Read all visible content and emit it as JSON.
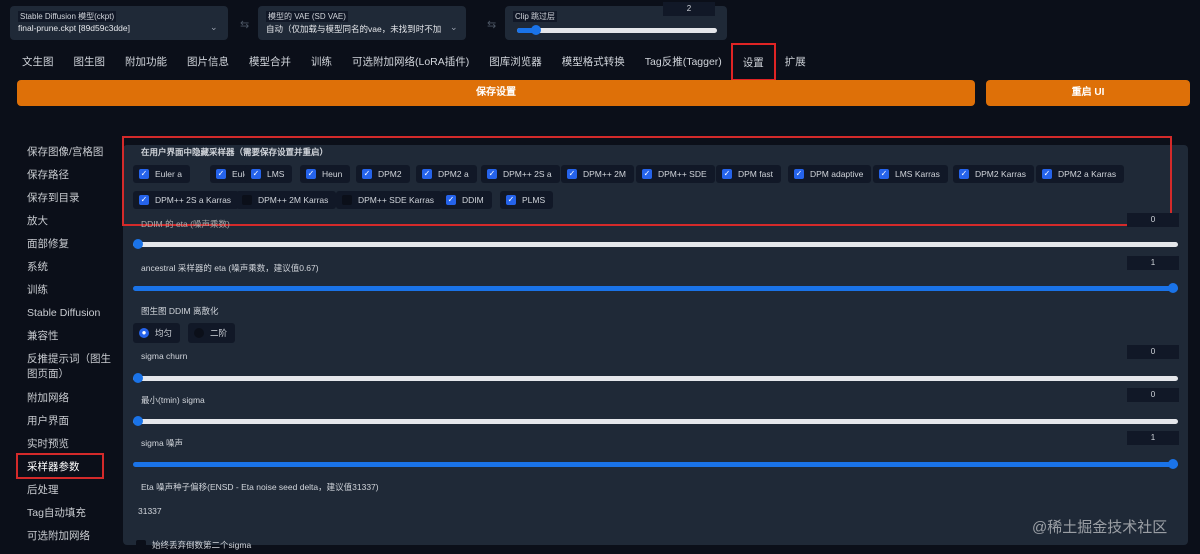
{
  "top": {
    "model_label": "Stable Diffusion 模型(ckpt)",
    "model_value": "final-prune.ckpt [89d59c3dde]",
    "vae_label": "模型的 VAE (SD VAE)",
    "vae_value": "自动（仅加载与模型同名的vae，未找到时不加",
    "clip_label": "Clip 跳过层",
    "clip_value": "2",
    "clip_fraction": 0.1
  },
  "tabs": [
    "文生图",
    "图生图",
    "附加功能",
    "图片信息",
    "模型合并",
    "训练",
    "可选附加网络(LoRA插件)",
    "图库浏览器",
    "模型格式转换",
    "Tag反推(Tagger)",
    "设置",
    "扩展"
  ],
  "active_tab": "设置",
  "buttons": {
    "save": "保存设置",
    "restart": "重启 UI"
  },
  "sidebar": [
    "保存图像/宫格图",
    "保存路径",
    "保存到目录",
    "放大",
    "面部修复",
    "系统",
    "训练",
    "Stable Diffusion",
    "兼容性",
    "反推提示词（图生图页面）",
    "附加网络",
    "用户界面",
    "实时预览",
    "采样器参数",
    "后处理",
    "Tag自动填充",
    "可选附加网络"
  ],
  "sidebar_active": "采样器参数",
  "samplers": {
    "title": "在用户界面中隐藏采样器（需要保存设置并重启）",
    "items": [
      {
        "label": "Euler a",
        "checked": true
      },
      {
        "label": "Euler",
        "checked": true
      },
      {
        "label": "LMS",
        "checked": true
      },
      {
        "label": "Heun",
        "checked": true
      },
      {
        "label": "DPM2",
        "checked": true
      },
      {
        "label": "DPM2 a",
        "checked": true
      },
      {
        "label": "DPM++ 2S a",
        "checked": true
      },
      {
        "label": "DPM++ 2M",
        "checked": true
      },
      {
        "label": "DPM++ SDE",
        "checked": true
      },
      {
        "label": "DPM fast",
        "checked": true
      },
      {
        "label": "DPM adaptive",
        "checked": true
      },
      {
        "label": "LMS Karras",
        "checked": true
      },
      {
        "label": "DPM2 Karras",
        "checked": true
      },
      {
        "label": "DPM2 a Karras",
        "checked": true
      },
      {
        "label": "DPM++ 2S a Karras",
        "checked": true
      },
      {
        "label": "DPM++ 2M Karras",
        "checked": false
      },
      {
        "label": "DPM++ SDE Karras",
        "checked": false
      },
      {
        "label": "DDIM",
        "checked": true
      },
      {
        "label": "PLMS",
        "checked": true
      }
    ]
  },
  "settings": {
    "ddim_eta": {
      "label": "DDIM 的 eta (噪声乘数)",
      "value": "0"
    },
    "ancestral_eta": {
      "label": "ancestral 采样器的 eta (噪声乘数，建议值0.67)",
      "value": "1"
    },
    "ddim_discretize": {
      "label": "图生图 DDIM 离散化",
      "options": [
        "均匀",
        "二阶"
      ],
      "selected": "均匀"
    },
    "sigma_churn": {
      "label": "sigma churn",
      "value": "0"
    },
    "sigma_tmin": {
      "label": "最小(tmin) sigma",
      "value": "0"
    },
    "sigma_noise": {
      "label": "sigma 噪声",
      "value": "1"
    },
    "ensd": {
      "label": "Eta 噪声种子偏移(ENSD - Eta noise seed delta，建议值31337)",
      "value": "31337"
    },
    "discard_penultimate": {
      "label": "始终丢弃倒数第二个sigma"
    }
  },
  "watermark": "@稀土掘金技术社区"
}
